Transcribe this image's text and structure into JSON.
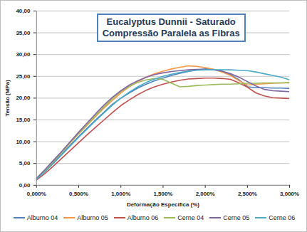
{
  "chart_data": {
    "type": "line",
    "title": "Eucalyptus Dunnii - Saturado",
    "subtitle": "Compressão Paralela as Fibras",
    "xlabel": "Deformação Específica (%)",
    "ylabel": "Tensão (MPa)",
    "x": [
      0,
      0.1,
      0.2,
      0.3,
      0.4,
      0.5,
      0.6,
      0.7,
      0.8,
      0.9,
      1.0,
      1.1,
      1.2,
      1.3,
      1.4,
      1.5,
      1.6,
      1.7,
      1.8,
      1.9,
      2.0,
      2.1,
      2.2,
      2.3,
      2.4,
      2.5,
      2.6,
      2.7,
      2.8,
      2.9,
      3.0
    ],
    "series": [
      {
        "name": "Alburno 04",
        "color": "#4f81bd",
        "values": [
          1.5,
          3.2,
          5.2,
          7.2,
          9.2,
          11.2,
          13.1,
          15.0,
          16.8,
          18.6,
          20.0,
          21.2,
          22.3,
          23.2,
          24.0,
          24.6,
          25.2,
          25.7,
          26.1,
          26.5,
          26.7,
          26.6,
          26.1,
          25.4,
          24.2,
          22.6,
          22.4,
          22.4,
          22.3,
          22.3,
          22.2
        ]
      },
      {
        "name": "Alburno 05",
        "color": "#f79646",
        "values": [
          1.5,
          3.4,
          5.5,
          7.6,
          9.7,
          11.8,
          13.8,
          15.8,
          17.7,
          19.5,
          21.2,
          22.6,
          23.8,
          24.8,
          25.6,
          26.2,
          26.7,
          27.1,
          27.4,
          27.3,
          27.0,
          26.6,
          26.0,
          25.2,
          24.0,
          23.0,
          23.2,
          23.3,
          23.4,
          23.5,
          23.5
        ]
      },
      {
        "name": "Alburno 06",
        "color": "#c0504d",
        "values": [
          1.2,
          2.7,
          4.4,
          6.2,
          8.0,
          9.8,
          11.6,
          13.3,
          15.0,
          16.7,
          18.3,
          19.6,
          20.8,
          21.8,
          22.6,
          23.2,
          23.7,
          24.1,
          24.4,
          24.5,
          24.6,
          24.6,
          24.5,
          24.3,
          23.5,
          22.5,
          21.2,
          20.5,
          20.1,
          20.0,
          19.9
        ]
      },
      {
        "name": "Cerne 04",
        "color": "#9bbb59",
        "values": [
          1.5,
          3.4,
          5.5,
          7.6,
          9.8,
          11.9,
          14.0,
          16.0,
          18.0,
          19.9,
          21.5,
          22.7,
          23.6,
          24.2,
          24.5,
          24.3,
          23.4,
          22.6,
          22.7,
          22.9,
          23.0,
          23.1,
          23.2,
          23.2,
          23.3,
          23.4,
          23.4,
          23.5,
          23.5,
          23.5,
          23.6
        ]
      },
      {
        "name": "Cerne 05",
        "color": "#8064a2",
        "values": [
          1.6,
          3.6,
          5.7,
          7.8,
          10.0,
          12.2,
          14.3,
          16.4,
          18.4,
          20.2,
          21.7,
          23.0,
          24.0,
          24.8,
          25.4,
          25.8,
          26.1,
          26.3,
          26.5,
          26.6,
          26.6,
          26.5,
          26.2,
          25.6,
          24.8,
          23.8,
          22.8,
          22.0,
          21.7,
          21.6,
          21.5
        ]
      },
      {
        "name": "Cerne 06",
        "color": "#4bacc6",
        "values": [
          1.4,
          3.1,
          5.0,
          7.0,
          9.0,
          11.0,
          12.9,
          14.8,
          16.6,
          18.4,
          20.0,
          21.4,
          22.6,
          23.6,
          24.4,
          25.0,
          25.5,
          25.9,
          26.2,
          26.4,
          26.5,
          26.5,
          26.5,
          26.5,
          26.4,
          26.3,
          26.0,
          25.6,
          25.2,
          24.8,
          24.2
        ]
      }
    ],
    "xlim": [
      0,
      3.0
    ],
    "xticks": [
      {
        "value": 0,
        "label": "0,000%"
      },
      {
        "value": 0.5,
        "label": "0,500%"
      },
      {
        "value": 1.0,
        "label": "1,000%"
      },
      {
        "value": 1.5,
        "label": "1,500%"
      },
      {
        "value": 2.0,
        "label": "2,000%"
      },
      {
        "value": 2.5,
        "label": "2,500%"
      },
      {
        "value": 3.0,
        "label": "3,000%"
      }
    ],
    "ylim": [
      0,
      40
    ],
    "yticks": [
      {
        "value": 0,
        "label": "0,00"
      },
      {
        "value": 5,
        "label": "5,00"
      },
      {
        "value": 10,
        "label": "10,00"
      },
      {
        "value": 15,
        "label": "15,00"
      },
      {
        "value": 20,
        "label": "20,00"
      },
      {
        "value": 25,
        "label": "25,00"
      },
      {
        "value": 30,
        "label": "30,00"
      },
      {
        "value": 35,
        "label": "35,00"
      },
      {
        "value": 40,
        "label": "40,00"
      }
    ],
    "grid": true,
    "legend": "bottom"
  }
}
